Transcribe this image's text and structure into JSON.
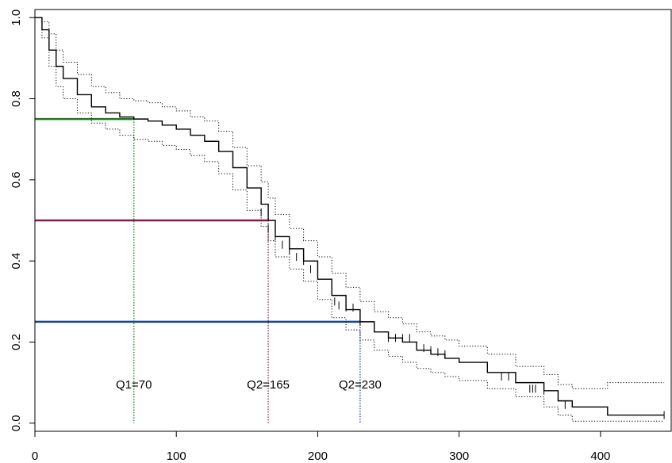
{
  "chart_data": {
    "type": "line",
    "title": "",
    "xlabel": "",
    "ylabel": "",
    "xlim": [
      0,
      450
    ],
    "ylim": [
      -0.02,
      1.02
    ],
    "x_ticks": [
      0,
      100,
      200,
      300,
      400
    ],
    "y_ticks": [
      0.0,
      0.2,
      0.4,
      0.6,
      0.8,
      1.0
    ],
    "x_tick_labels": [
      "0",
      "100",
      "200",
      "300",
      "400"
    ],
    "y_tick_labels": [
      "0.0",
      "0.2",
      "0.4",
      "0.6",
      "0.8",
      "1.0"
    ],
    "grid": false,
    "series": [
      {
        "style": "step-solid",
        "color": "#000000",
        "x": [
          0,
          5,
          10,
          15,
          20,
          30,
          40,
          50,
          60,
          70,
          80,
          90,
          100,
          110,
          120,
          130,
          140,
          150,
          160,
          165,
          170,
          180,
          190,
          200,
          210,
          220,
          230,
          240,
          250,
          260,
          270,
          280,
          290,
          300,
          320,
          340,
          360,
          370,
          380,
          400,
          405,
          445
        ],
        "y": [
          1.0,
          0.97,
          0.92,
          0.88,
          0.85,
          0.81,
          0.78,
          0.765,
          0.755,
          0.75,
          0.745,
          0.735,
          0.725,
          0.71,
          0.695,
          0.67,
          0.63,
          0.58,
          0.54,
          0.5,
          0.46,
          0.43,
          0.4,
          0.355,
          0.315,
          0.28,
          0.25,
          0.225,
          0.21,
          0.2,
          0.18,
          0.17,
          0.16,
          0.15,
          0.125,
          0.1,
          0.08,
          0.055,
          0.04,
          0.04,
          0.02,
          0.02
        ]
      },
      {
        "style": "step-dotted",
        "color": "#000000",
        "x": [
          0,
          5,
          10,
          15,
          20,
          30,
          40,
          50,
          60,
          70,
          80,
          90,
          100,
          110,
          120,
          130,
          140,
          150,
          160,
          165,
          170,
          180,
          190,
          200,
          210,
          220,
          230,
          240,
          250,
          260,
          270,
          280,
          290,
          300,
          320,
          340,
          360,
          370,
          380,
          400,
          405,
          445
        ],
        "y": [
          1.0,
          0.99,
          0.96,
          0.92,
          0.89,
          0.86,
          0.83,
          0.815,
          0.8,
          0.795,
          0.79,
          0.78,
          0.77,
          0.755,
          0.745,
          0.72,
          0.68,
          0.635,
          0.595,
          0.555,
          0.515,
          0.48,
          0.45,
          0.41,
          0.37,
          0.335,
          0.3,
          0.275,
          0.26,
          0.245,
          0.225,
          0.215,
          0.205,
          0.19,
          0.17,
          0.14,
          0.12,
          0.095,
          0.085,
          0.085,
          0.1,
          0.1
        ]
      },
      {
        "style": "step-dotted",
        "color": "#000000",
        "x": [
          0,
          5,
          10,
          15,
          20,
          30,
          40,
          50,
          60,
          70,
          80,
          90,
          100,
          110,
          120,
          130,
          140,
          150,
          160,
          165,
          170,
          180,
          190,
          200,
          210,
          220,
          230,
          240,
          250,
          260,
          270,
          280,
          290,
          300,
          320,
          340,
          360,
          370,
          380,
          400,
          405,
          445
        ],
        "y": [
          1.0,
          0.95,
          0.88,
          0.83,
          0.8,
          0.765,
          0.74,
          0.725,
          0.71,
          0.7,
          0.695,
          0.685,
          0.675,
          0.66,
          0.645,
          0.615,
          0.575,
          0.525,
          0.485,
          0.45,
          0.41,
          0.38,
          0.35,
          0.305,
          0.26,
          0.23,
          0.205,
          0.18,
          0.165,
          0.15,
          0.135,
          0.125,
          0.115,
          0.105,
          0.085,
          0.065,
          0.04,
          0.02,
          0.005,
          0.005,
          0.005,
          0.005
        ]
      }
    ],
    "censor_marks": {
      "x": [
        160,
        165,
        170,
        175,
        180,
        185,
        190,
        195,
        212,
        215,
        220,
        225,
        230,
        250,
        255,
        260,
        265,
        275,
        280,
        285,
        290,
        330,
        335,
        350,
        352,
        354,
        360,
        375,
        445
      ],
      "y": [
        0.52,
        0.48,
        0.46,
        0.44,
        0.425,
        0.41,
        0.4,
        0.38,
        0.3,
        0.29,
        0.285,
        0.285,
        0.25,
        0.21,
        0.21,
        0.21,
        0.21,
        0.185,
        0.18,
        0.175,
        0.17,
        0.115,
        0.115,
        0.085,
        0.085,
        0.085,
        0.08,
        0.045,
        0.02
      ]
    },
    "quantile_lines": [
      {
        "y": 0.75,
        "x": 70,
        "color": "#1a7a1a",
        "label": "Q1=70"
      },
      {
        "y": 0.5,
        "x": 165,
        "color": "#8b1a4a",
        "label": "Q2=165"
      },
      {
        "y": 0.25,
        "x": 230,
        "color": "#1a4a8b",
        "label": "Q2=230"
      }
    ],
    "annotation_y": 0.095
  }
}
